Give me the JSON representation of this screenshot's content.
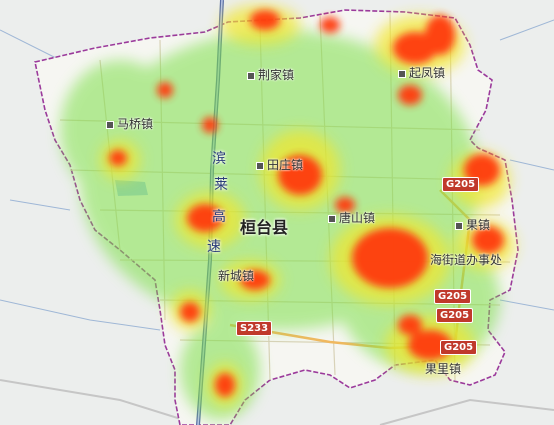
{
  "map": {
    "county_label": "桓台县",
    "expressway_label": [
      "滨",
      "莱",
      "高",
      "速"
    ],
    "towns": [
      {
        "id": "jingjia",
        "name": "荆家镇"
      },
      {
        "id": "qifeng",
        "name": "起凤镇"
      },
      {
        "id": "maqiao",
        "name": "马桥镇"
      },
      {
        "id": "tianzhuang",
        "name": "田庄镇"
      },
      {
        "id": "tangshan",
        "name": "唐山镇"
      },
      {
        "id": "guozhen",
        "name": "果镇"
      },
      {
        "id": "haidao",
        "name": "海街道办事处"
      },
      {
        "id": "xincheng",
        "name": "新城镇"
      },
      {
        "id": "guojia",
        "name": "果里镇"
      }
    ],
    "road_shields": [
      "G205",
      "G205",
      "G205",
      "G205",
      "S233"
    ],
    "heatmap_colors": {
      "low": "#7ee04a",
      "mid": "#f2e62a",
      "high": "#ff3b10"
    }
  }
}
